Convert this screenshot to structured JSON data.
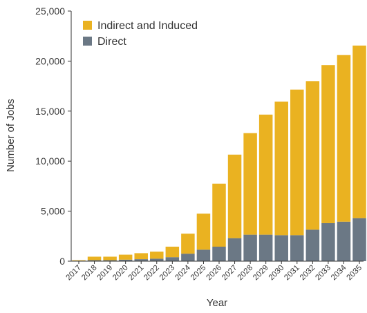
{
  "chart_data": {
    "type": "bar",
    "stacked": true,
    "title": "",
    "xlabel": "Year",
    "ylabel": "Number of Jobs",
    "ylim": [
      0,
      25000
    ],
    "yticks": [
      0,
      5000,
      10000,
      15000,
      20000,
      25000
    ],
    "ytick_labels": [
      "0",
      "5,000",
      "10,000",
      "15,000",
      "20,000",
      "25,000"
    ],
    "categories": [
      "2017",
      "2018",
      "2019",
      "2020",
      "2021",
      "2022",
      "2023",
      "2024",
      "2025",
      "2026",
      "2027",
      "2028",
      "2029",
      "2030",
      "2031",
      "2032",
      "2033",
      "2034",
      "2035"
    ],
    "series": [
      {
        "name": "Direct",
        "color": "#6b7885",
        "values": [
          50,
          100,
          100,
          150,
          200,
          250,
          400,
          750,
          1150,
          1450,
          2300,
          2650,
          2650,
          2600,
          2600,
          3150,
          3800,
          3950,
          4300
        ]
      },
      {
        "name": "Indirect and Induced",
        "color": "#eab221",
        "values": [
          50,
          350,
          350,
          500,
          600,
          700,
          1050,
          2000,
          3600,
          6300,
          8350,
          10150,
          12000,
          13350,
          14550,
          14850,
          15800,
          16650,
          17250
        ]
      }
    ],
    "legend": {
      "position": "top-left",
      "entries": [
        "Indirect and Induced",
        "Direct"
      ]
    },
    "grid": false
  }
}
